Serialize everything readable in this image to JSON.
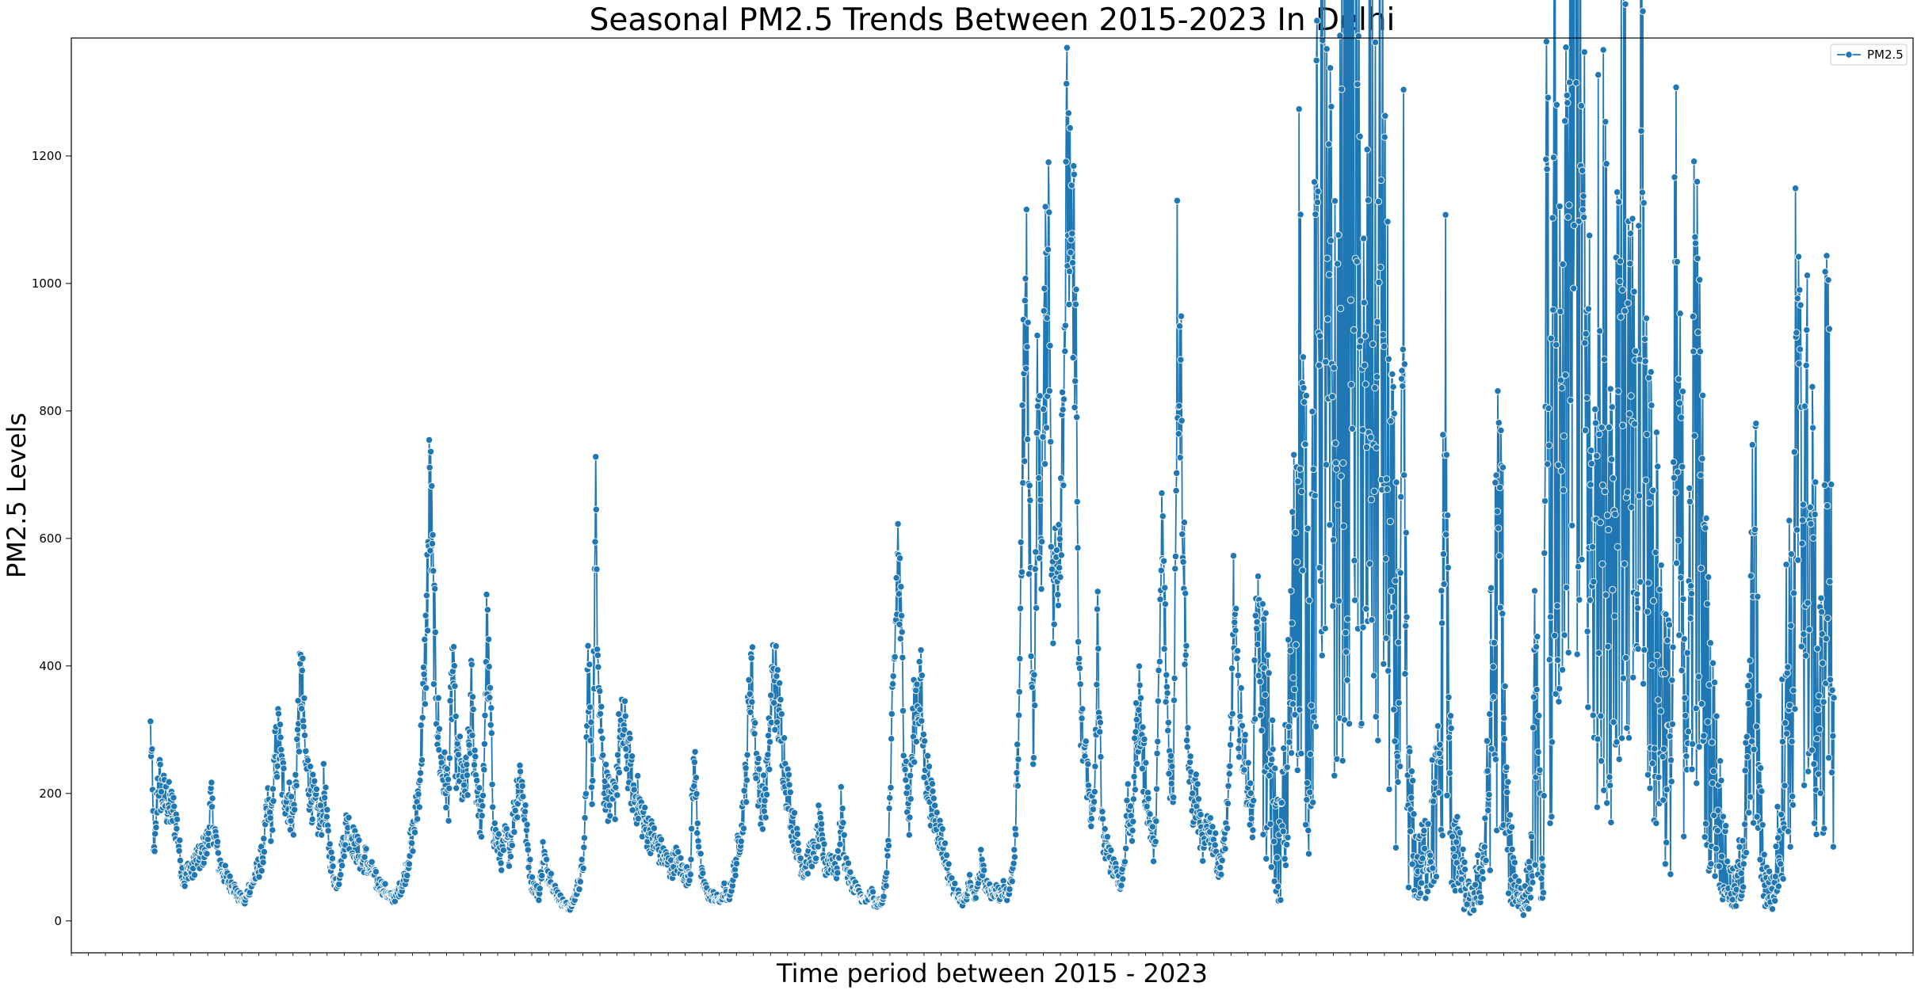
{
  "colors": {
    "series": "#1f77b4",
    "marker_edge": "#ffffff",
    "axes": "#000000"
  },
  "chart_data": {
    "type": "line",
    "title": "Seasonal PM2.5 Trends Between 2015-2023 In Delhi",
    "xlabel": "Time period between 2015 - 2023",
    "ylabel": "PM2.5 Levels",
    "ylim": [
      -50,
      1385
    ],
    "yticks": [
      0,
      200,
      400,
      600,
      800,
      1000,
      1200
    ],
    "ytick_labels": [
      "0",
      "200",
      "400",
      "600",
      "800",
      "1000",
      "1200"
    ],
    "xtick_labels": [],
    "grid": false,
    "legend": {
      "position": "top-right",
      "entries": [
        "PM2.5"
      ]
    },
    "series": [
      {
        "name": "PM2.5",
        "marker": "circle",
        "x_start": "2015-01-01",
        "x_end": "2023-12-31",
        "resolution": "daily",
        "values": [
          313,
          88,
          230,
          201,
          185,
          180,
          170,
          150,
          90,
          60,
          85,
          75,
          100,
          95,
          110,
          120,
          185,
          140,
          95,
          80,
          70,
          60,
          55,
          40,
          35,
          30,
          50,
          60,
          75,
          90,
          110,
          180,
          150,
          250,
          290,
          220,
          200,
          180,
          160,
          300,
          390,
          250,
          220,
          190,
          170,
          150,
          210,
          130,
          90,
          60,
          70,
          120,
          150,
          140,
          120,
          110,
          90,
          100,
          80,
          75,
          60,
          55,
          50,
          40,
          35,
          40,
          50,
          60,
          90,
          120,
          150,
          200,
          300,
          437,
          685,
          480,
          320,
          240,
          220,
          200,
          410,
          250,
          240,
          200,
          230,
          350,
          250,
          180,
          150,
          450,
          325,
          140,
          120,
          100,
          130,
          110,
          150,
          200,
          230,
          180,
          110,
          60,
          50,
          40,
          110,
          80,
          70,
          50,
          40,
          30,
          25,
          20,
          30,
          50,
          70,
          110,
          427,
          200,
          638,
          360,
          230,
          200,
          180,
          190,
          270,
          300,
          280,
          240,
          200,
          190,
          170,
          150,
          140,
          130,
          120,
          110,
          100,
          90,
          80,
          100,
          90,
          80,
          70,
          80,
          260,
          150,
          70,
          50,
          40,
          40,
          35,
          30,
          50,
          30,
          60,
          90,
          130,
          170,
          250,
          420,
          300,
          220,
          180,
          200,
          280,
          400,
          350,
          300,
          250,
          200,
          160,
          130,
          100,
          80,
          90,
          110,
          100,
          150,
          120,
          80,
          100,
          90,
          75,
          180,
          100,
          70,
          60,
          50,
          40,
          30,
          35,
          45,
          25,
          30,
          35,
          70,
          200,
          390,
          584,
          420,
          250,
          150,
          300,
          350,
          370,
          250,
          220,
          180,
          160,
          140,
          120,
          90,
          60,
          50,
          40,
          30,
          35,
          60,
          40,
          45,
          100,
          60,
          55,
          40,
          50,
          40,
          55,
          40,
          60,
          100,
          300,
          708,
          970,
          600,
          260,
          800,
          620,
          900,
          1100,
          480,
          560,
          650,
          900,
          1200,
          950,
          1035,
          350,
          280,
          240,
          180,
          160,
          470,
          150,
          120,
          100,
          90,
          80,
          50,
          100,
          180,
          130,
          280,
          350,
          250,
          200,
          150,
          100,
          300,
          620,
          400,
          250,
          200,
          962,
          860,
          500,
          250,
          180,
          200,
          150,
          100,
          160,
          140,
          120,
          80,
          100,
          150,
          220,
          500,
          350,
          300,
          250,
          200,
          150,
          530,
          400,
          300,
          250,
          200,
          150,
          100,
          150,
          200,
          350,
          460,
          840,
          700,
          500,
          380,
          600,
          820,
          1220,
          1150,
          700,
          850,
          650,
          780,
          1020,
          980,
          1310,
          1240,
          900,
          800,
          600,
          1030,
          890,
          700,
          1170,
          800,
          600,
          500,
          450,
          300,
          760,
          200,
          150,
          100,
          80,
          90,
          110,
          140,
          160,
          180,
          300,
          800,
          250,
          150,
          100,
          80,
          60,
          40,
          30,
          50,
          70,
          100,
          150,
          300,
          420,
          500,
          550,
          200,
          100,
          80,
          50,
          40,
          30,
          60,
          90,
          380,
          150,
          60,
          960,
          500,
          940,
          700,
          560,
          800,
          1290,
          1320,
          1310,
          1080,
          800,
          700,
          600,
          540,
          950,
          800,
          700,
          600,
          650,
          1000,
          960,
          800,
          700,
          600,
          500,
          1230,
          700,
          600,
          500,
          450,
          400,
          350,
          300,
          250,
          800,
          600,
          500,
          450,
          400,
          920,
          650,
          540,
          400,
          300,
          250,
          200,
          150,
          100,
          60,
          50,
          40,
          80,
          120,
          200,
          350,
          580,
          250,
          100,
          60,
          50,
          40,
          100,
          200,
          300,
          450,
          300,
          760,
          620,
          720,
          600,
          550,
          400,
          350,
          300,
          760,
          500,
          350
        ]
      }
    ]
  }
}
